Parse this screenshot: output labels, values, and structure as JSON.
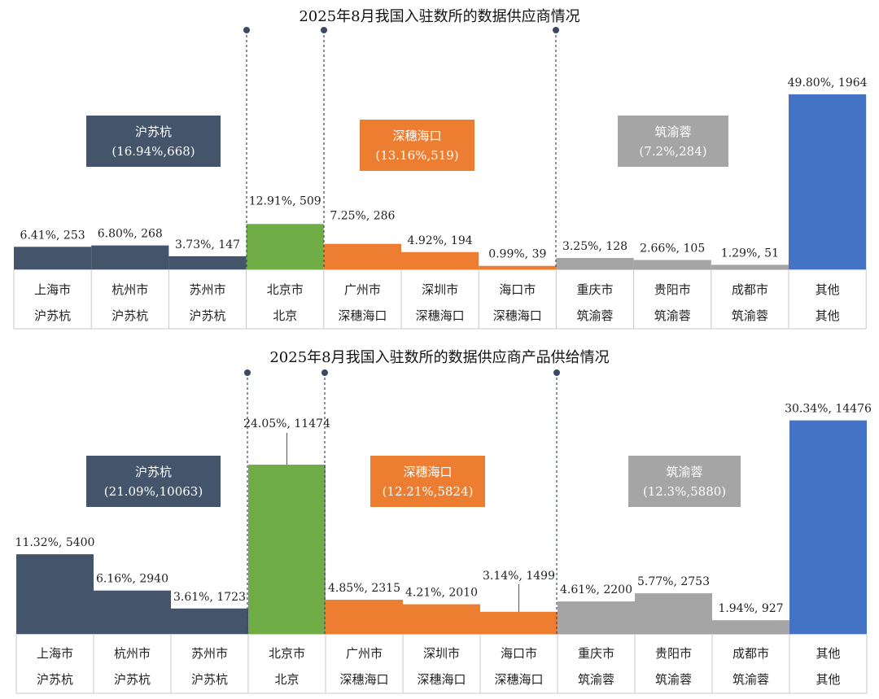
{
  "colors": {
    "hu": "#44546a",
    "bj": "#70ad47",
    "sz": "#ed7d31",
    "zy": "#a5a5a5",
    "other": "#4472c4"
  },
  "chart_data": [
    {
      "type": "bar",
      "title": "2025年8月我国入驻数所的数据供应商情况",
      "ylim": [
        0,
        2100
      ],
      "categories": [
        {
          "city": "上海市",
          "group": "沪苏杭"
        },
        {
          "city": "杭州市",
          "group": "沪苏杭"
        },
        {
          "city": "苏州市",
          "group": "沪苏杭"
        },
        {
          "city": "北京市",
          "group": "北京"
        },
        {
          "city": "广州市",
          "group": "深穗海口"
        },
        {
          "city": "深圳市",
          "group": "深穗海口"
        },
        {
          "city": "海口市",
          "group": "深穗海口"
        },
        {
          "city": "重庆市",
          "group": "筑渝蓉"
        },
        {
          "city": "贵阳市",
          "group": "筑渝蓉"
        },
        {
          "city": "成都市",
          "group": "筑渝蓉"
        },
        {
          "city": "其他",
          "group": "其他"
        }
      ],
      "values": [
        253,
        268,
        147,
        509,
        286,
        194,
        39,
        128,
        105,
        51,
        1964
      ],
      "data_labels": [
        "6.41%, 253",
        "6.80%, 268",
        "3.73%, 147",
        "12.91%, 509",
        "7.25%, 286",
        "4.92%, 194",
        "0.99%, 39",
        "3.25%, 128",
        "2.66%, 105",
        "1.29%, 51",
        "49.80%, 1964"
      ],
      "group_boxes": [
        {
          "name": "沪苏杭",
          "detail": "(16.94%,668)"
        },
        {
          "name": "深穗海口",
          "detail": "(13.16%,519)"
        },
        {
          "name": "筑渝蓉",
          "detail": "(7.2%,284)"
        }
      ]
    },
    {
      "type": "bar",
      "title": "2025年8月我国入驻数所的数据供应商产品供给情况",
      "ylim": [
        0,
        16000
      ],
      "categories": [
        {
          "city": "上海市",
          "group": "沪苏杭"
        },
        {
          "city": "杭州市",
          "group": "沪苏杭"
        },
        {
          "city": "苏州市",
          "group": "沪苏杭"
        },
        {
          "city": "北京市",
          "group": "北京"
        },
        {
          "city": "广州市",
          "group": "深穗海口"
        },
        {
          "city": "深圳市",
          "group": "深穗海口"
        },
        {
          "city": "海口市",
          "group": "深穗海口"
        },
        {
          "city": "重庆市",
          "group": "筑渝蓉"
        },
        {
          "city": "贵阳市",
          "group": "筑渝蓉"
        },
        {
          "city": "成都市",
          "group": "筑渝蓉"
        },
        {
          "city": "其他",
          "group": "其他"
        }
      ],
      "values": [
        5400,
        2940,
        1723,
        11474,
        2315,
        2010,
        1499,
        2200,
        2753,
        927,
        14476
      ],
      "data_labels": [
        "11.32%, 5400",
        "6.16%, 2940",
        "3.61%, 1723",
        "24.05%, 11474",
        "4.85%, 2315",
        "4.21%, 2010",
        "3.14%, 1499",
        "4.61%, 2200",
        "5.77%, 2753",
        "1.94%, 927",
        "30.34%, 14476"
      ],
      "group_boxes": [
        {
          "name": "沪苏杭",
          "detail": "(21.09%,10063)"
        },
        {
          "name": "深穗海口",
          "detail": "(12.21%,5824)"
        },
        {
          "name": "筑渝蓉",
          "detail": "(12.3%,5880)"
        }
      ]
    }
  ]
}
